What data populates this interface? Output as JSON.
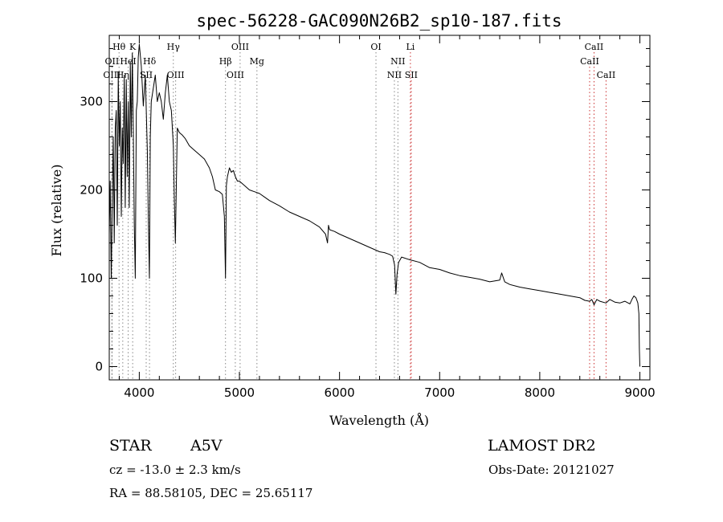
{
  "chart_data": {
    "type": "line",
    "title": "spec-56228-GAC090N26B2_sp10-187.fits",
    "xlabel": "Wavelength (Å)",
    "ylabel": "Flux (relative)",
    "xlim": [
      3700,
      9100
    ],
    "ylim": [
      -15,
      375
    ],
    "xticks": [
      4000,
      5000,
      6000,
      7000,
      8000,
      9000
    ],
    "yticks": [
      0,
      100,
      200,
      300
    ],
    "minor_x_step": 200,
    "minor_y_step": 20,
    "series": [
      {
        "color": "#000000",
        "x": [
          3700,
          3710,
          3720,
          3730,
          3740,
          3750,
          3760,
          3770,
          3780,
          3790,
          3800,
          3810,
          3820,
          3830,
          3840,
          3850,
          3860,
          3870,
          3880,
          3890,
          3900,
          3910,
          3920,
          3930,
          3940,
          3950,
          3960,
          3970,
          3980,
          3990,
          4000,
          4020,
          4040,
          4060,
          4080,
          4090,
          4101,
          4110,
          4120,
          4140,
          4160,
          4180,
          4200,
          4220,
          4240,
          4260,
          4280,
          4300,
          4320,
          4340,
          4350,
          4360,
          4380,
          4400,
          4430,
          4460,
          4500,
          4550,
          4600,
          4650,
          4700,
          4730,
          4760,
          4800,
          4830,
          4850,
          4861,
          4870,
          4880,
          4900,
          4920,
          4940,
          4960,
          4980,
          5000,
          5050,
          5100,
          5150,
          5200,
          5250,
          5300,
          5400,
          5500,
          5600,
          5700,
          5800,
          5860,
          5880,
          5890,
          5900,
          5950,
          6000,
          6100,
          6200,
          6300,
          6400,
          6450,
          6500,
          6530,
          6550,
          6563,
          6575,
          6590,
          6620,
          6700,
          6800,
          6900,
          7000,
          7100,
          7200,
          7300,
          7400,
          7500,
          7600,
          7620,
          7650,
          7700,
          7800,
          7900,
          8000,
          8100,
          8200,
          8300,
          8400,
          8450,
          8498,
          8520,
          8542,
          8570,
          8600,
          8662,
          8700,
          8750,
          8800,
          8850,
          8900,
          8920,
          8940,
          8960,
          8980,
          8990,
          8995,
          9000
        ],
        "y": [
          150,
          210,
          100,
          185,
          260,
          140,
          270,
          290,
          160,
          330,
          250,
          300,
          170,
          270,
          230,
          330,
          180,
          325,
          215,
          300,
          180,
          345,
          260,
          355,
          270,
          160,
          100,
          290,
          300,
          350,
          365,
          340,
          295,
          330,
          245,
          170,
          100,
          260,
          300,
          315,
          330,
          300,
          310,
          300,
          280,
          310,
          330,
          300,
          290,
          250,
          190,
          140,
          270,
          265,
          262,
          258,
          250,
          245,
          240,
          235,
          225,
          215,
          200,
          198,
          195,
          170,
          100,
          205,
          215,
          225,
          220,
          222,
          215,
          210,
          210,
          205,
          200,
          198,
          196,
          192,
          188,
          182,
          175,
          170,
          165,
          158,
          150,
          140,
          160,
          155,
          153,
          150,
          145,
          140,
          135,
          130,
          129,
          127,
          125,
          115,
          82,
          105,
          118,
          124,
          121,
          118,
          112,
          110,
          106,
          103,
          101,
          99,
          96,
          98,
          106,
          96,
          93,
          90,
          88,
          86,
          84,
          82,
          80,
          78,
          75,
          74,
          76,
          70,
          76,
          74,
          72,
          76,
          73,
          72,
          74,
          71,
          76,
          80,
          78,
          72,
          60,
          20,
          0
        ]
      }
    ],
    "spectral_lines": [
      {
        "label": "Hθ",
        "wavelength": 3798,
        "row": 1,
        "color": "#888888"
      },
      {
        "label": "K",
        "wavelength": 3934,
        "row": 1,
        "color": "#888888"
      },
      {
        "label": "Hγ",
        "wavelength": 4340,
        "row": 1,
        "color": "#888888"
      },
      {
        "label": "OIII",
        "wavelength": 5007,
        "row": 1,
        "color": "#888888"
      },
      {
        "label": "OI",
        "wavelength": 6364,
        "row": 1,
        "color": "#888888"
      },
      {
        "label": "Li",
        "wavelength": 6708,
        "row": 1,
        "color": "#cc3333"
      },
      {
        "label": "CaII",
        "wavelength": 8542,
        "row": 1,
        "color": "#cc3333"
      },
      {
        "label": "OII",
        "wavelength": 3727,
        "row": 2,
        "color": "#888888"
      },
      {
        "label": "HeI",
        "wavelength": 3889,
        "row": 2,
        "color": "#888888"
      },
      {
        "label": "Hδ",
        "wavelength": 4102,
        "row": 2,
        "color": "#888888"
      },
      {
        "label": "Hβ",
        "wavelength": 4861,
        "row": 2,
        "color": "#888888"
      },
      {
        "label": "Mg",
        "wavelength": 5175,
        "row": 2,
        "color": "#888888"
      },
      {
        "label": "NII",
        "wavelength": 6583,
        "row": 2,
        "color": "#888888"
      },
      {
        "label": "CaII",
        "wavelength": 8498,
        "row": 2,
        "color": "#cc3333"
      },
      {
        "label": "OIII",
        "wavelength": 3727,
        "row": 3,
        "color": "#888888"
      },
      {
        "label": "Hη",
        "wavelength": 3835,
        "row": 3,
        "color": "#888888"
      },
      {
        "label": "SII",
        "wavelength": 4069,
        "row": 3,
        "color": "#888888"
      },
      {
        "label": "OIII",
        "wavelength": 4363,
        "row": 3,
        "color": "#888888"
      },
      {
        "label": "OIII",
        "wavelength": 4959,
        "row": 3,
        "color": "#888888"
      },
      {
        "label": "NII",
        "wavelength": 6548,
        "row": 3,
        "color": "#888888"
      },
      {
        "label": "SII",
        "wavelength": 6716,
        "row": 3,
        "color": "#cc3333"
      },
      {
        "label": "CaII",
        "wavelength": 8662,
        "row": 3,
        "color": "#cc3333"
      }
    ]
  },
  "info": {
    "object_class": "STAR",
    "subclass": "A5V",
    "survey": "LAMOST DR2",
    "cz": "cz = -13.0 ± 2.3 km/s",
    "obs_date": "Obs-Date: 20121027",
    "coords": "RA =  88.58105, DEC =  25.65117"
  }
}
